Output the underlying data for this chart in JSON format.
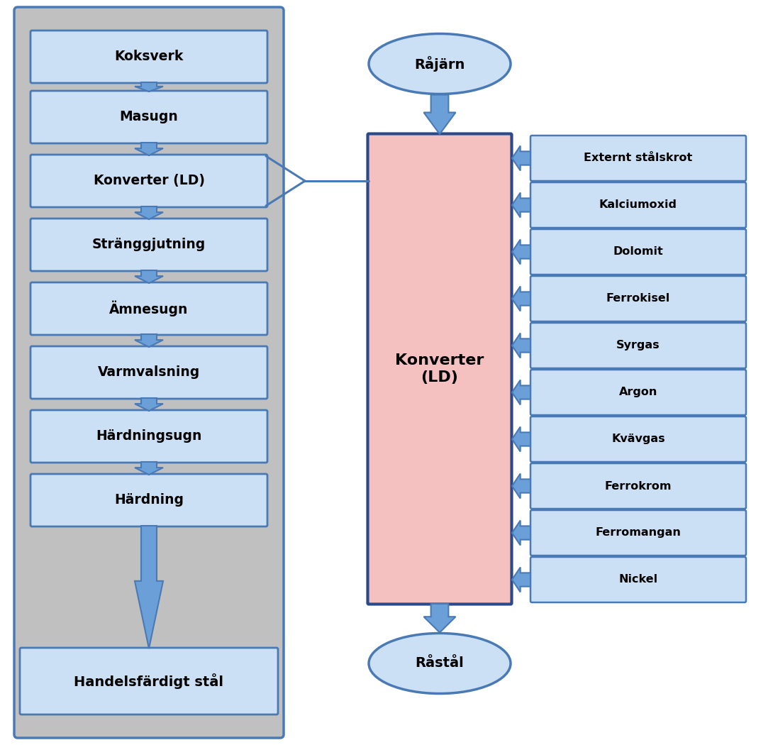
{
  "background_color": "#ffffff",
  "left_panel_bg": "#c0c0c0",
  "left_panel_border": "#4a7ab5",
  "box_fill": "#cce0f5",
  "box_border": "#4a7ab5",
  "arrow_color": "#4a7ab5",
  "arrow_fill": "#6a9fd8",
  "pink_box_fill": "#f5c0c0",
  "pink_box_border": "#2a4a8a",
  "left_boxes": [
    "Koksverk",
    "Masugn",
    "Konverter (LD)",
    "Stränggjutning",
    "Ämnesugn",
    "Varmvalsning",
    "Härdningsugn",
    "Härdning",
    "Handelsfärdigt stål"
  ],
  "right_inputs": [
    "Externt stålskrot",
    "Kalciumoxid",
    "Dolomit",
    "Ferrokisel",
    "Syrgas",
    "Argon",
    "Kvävgas",
    "Ferrokrom",
    "Ferromangan",
    "Nickel"
  ],
  "top_oval": "Råjärn",
  "bottom_oval": "Råstål",
  "center_box": "Konverter\n(LD)",
  "figsize": [
    10.9,
    10.5
  ],
  "dpi": 100
}
